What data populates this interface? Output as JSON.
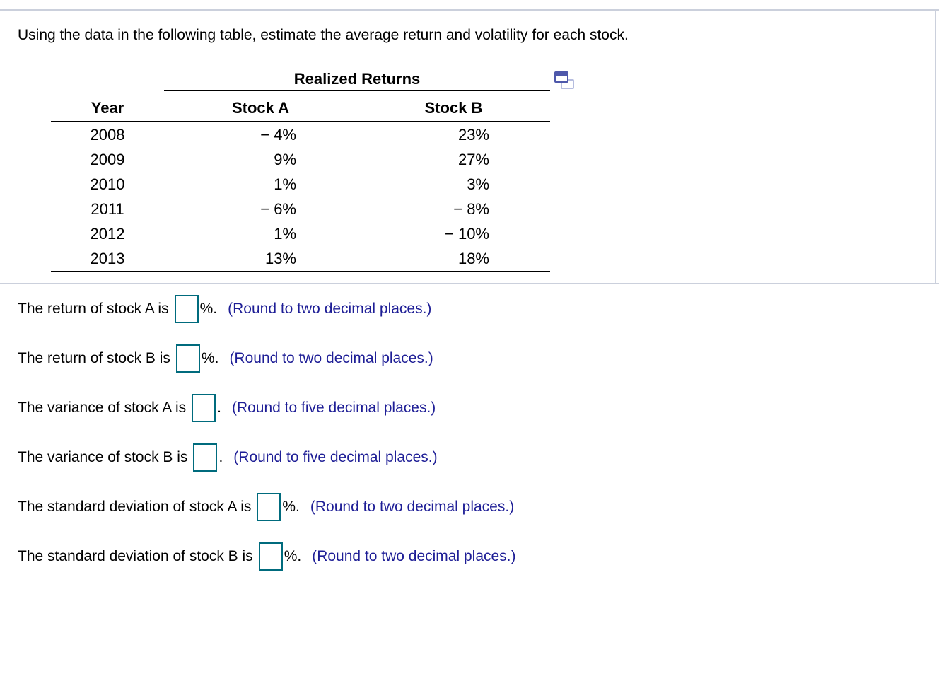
{
  "question": "Using the data in the following table, estimate the average return and volatility for each stock.",
  "table": {
    "title": "Realized Returns",
    "columns": {
      "year": "Year",
      "stock_a": "Stock A",
      "stock_b": "Stock B"
    },
    "rows": [
      {
        "year": "2008",
        "stock_a": "− 4%",
        "stock_b": "23%"
      },
      {
        "year": "2009",
        "stock_a": "9%",
        "stock_b": "27%"
      },
      {
        "year": "2010",
        "stock_a": "1%",
        "stock_b": "3%"
      },
      {
        "year": "2011",
        "stock_a": "− 6%",
        "stock_b": "− 8%"
      },
      {
        "year": "2012",
        "stock_a": "1%",
        "stock_b": "− 10%"
      },
      {
        "year": "2013",
        "stock_a": "13%",
        "stock_b": "18%"
      }
    ]
  },
  "icons": {
    "table_popout": "popout-windows-icon"
  },
  "answers": [
    {
      "label": "The return of stock A is",
      "value": "",
      "suffix": "%.",
      "note": "(Round to two decimal places.)"
    },
    {
      "label": "The return of stock B is",
      "value": "",
      "suffix": "%.",
      "note": "(Round to two decimal places.)"
    },
    {
      "label": "The variance of stock A is",
      "value": "",
      "suffix": ".",
      "note": "(Round to five decimal places.)"
    },
    {
      "label": "The variance of stock B is",
      "value": "",
      "suffix": ".",
      "note": "(Round to five decimal places.)"
    },
    {
      "label": "The standard deviation of stock A is",
      "value": "",
      "suffix": "%.",
      "note": "(Round to two decimal places.)"
    },
    {
      "label": "The standard deviation of stock B is",
      "value": "",
      "suffix": "%.",
      "note": "(Round to two decimal places.)"
    }
  ],
  "colors": {
    "note_blue": "#1e1e96",
    "input_border_teal": "#006b7d",
    "divider_gray": "#cbd0dc",
    "table_rule_black": "#000000",
    "icon_front_blue": "#4e58ab",
    "icon_back_blue": "#b6bddf"
  }
}
